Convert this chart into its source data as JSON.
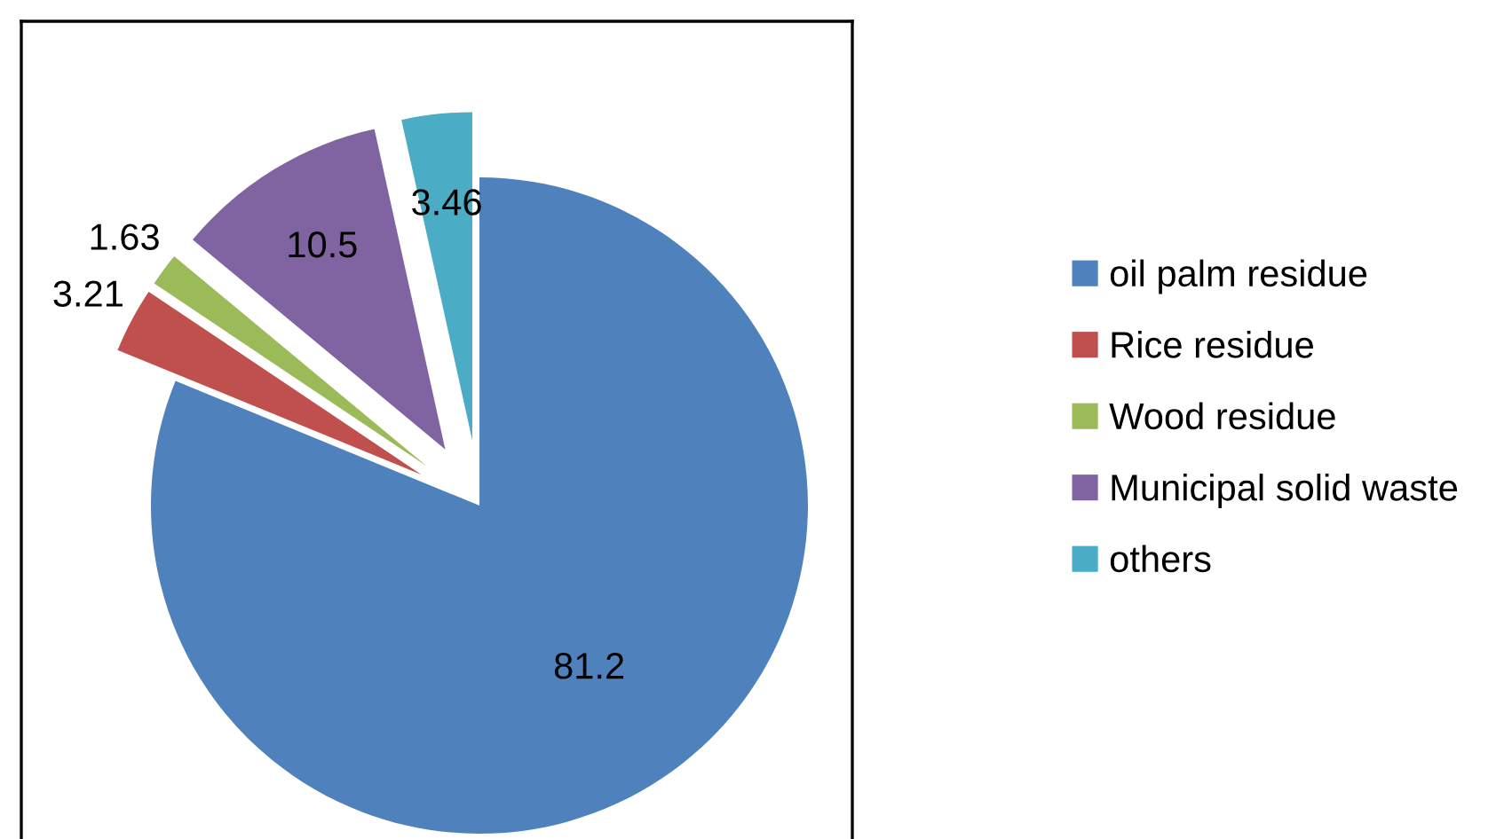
{
  "chart_data": {
    "type": "pie",
    "categories": [
      "oil palm residue",
      "Rice residue",
      "Wood residue",
      "Municipal solid waste",
      "others"
    ],
    "values": [
      81.2,
      3.21,
      1.63,
      10.5,
      3.46
    ],
    "colors": [
      "#4f81bd",
      "#c0504d",
      "#9bbb59",
      "#8064a2",
      "#4bacc6"
    ],
    "data_labels": true,
    "legend": "right"
  }
}
